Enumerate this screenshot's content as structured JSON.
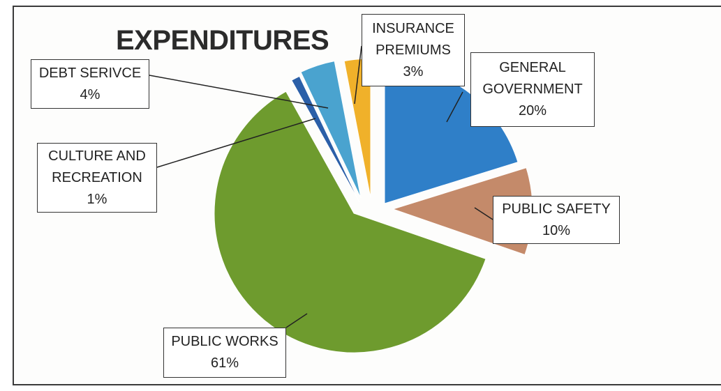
{
  "chart_data": {
    "type": "pie",
    "title": "EXPENDITURES",
    "exploded": true,
    "slices": [
      {
        "name": "GENERAL GOVERNMENT",
        "lines": [
          "GENERAL",
          "GOVERNMENT"
        ],
        "value": 20,
        "label": "20%",
        "color": "#2f7fc8"
      },
      {
        "name": "PUBLIC SAFETY",
        "lines": [
          "PUBLIC SAFETY"
        ],
        "value": 10,
        "label": "10%",
        "color": "#c48a6a"
      },
      {
        "name": "PUBLIC WORKS",
        "lines": [
          "PUBLIC WORKS"
        ],
        "value": 61,
        "label": "61%",
        "color": "#6e9b2e"
      },
      {
        "name": "CULTURE AND RECREATION",
        "lines": [
          "CULTURE AND",
          "RECREATION"
        ],
        "value": 1,
        "label": "1%",
        "color": "#2b5fa8"
      },
      {
        "name": "DEBT SERIVCE",
        "lines": [
          "DEBT SERIVCE"
        ],
        "value": 4,
        "label": "4%",
        "color": "#4aa3cf"
      },
      {
        "name": "INSURANCE PREMIUMS",
        "lines": [
          "INSURANCE",
          "PREMIUMS"
        ],
        "value": 3,
        "label": "3%",
        "color": "#f0b12a"
      }
    ]
  }
}
